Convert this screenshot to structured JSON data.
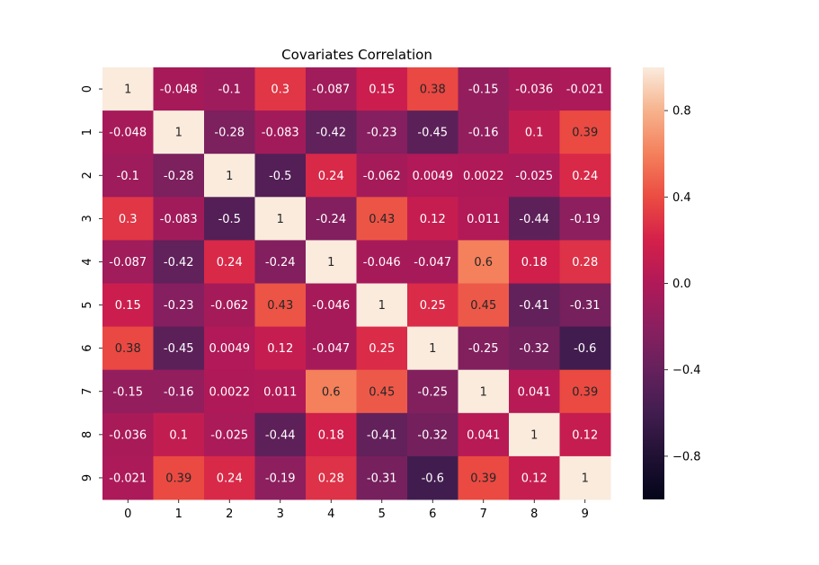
{
  "chart_data": {
    "type": "heatmap",
    "title": "Covariates Correlation",
    "xlabel": "",
    "ylabel": "",
    "x_ticks": [
      "0",
      "1",
      "2",
      "3",
      "4",
      "5",
      "6",
      "7",
      "8",
      "9"
    ],
    "y_ticks": [
      "0",
      "1",
      "2",
      "3",
      "4",
      "5",
      "6",
      "7",
      "8",
      "9"
    ],
    "values": [
      [
        1,
        -0.048,
        -0.1,
        0.3,
        -0.087,
        0.15,
        0.38,
        -0.15,
        -0.036,
        -0.021
      ],
      [
        -0.048,
        1,
        -0.28,
        -0.083,
        -0.42,
        -0.23,
        -0.45,
        -0.16,
        0.1,
        0.39
      ],
      [
        -0.1,
        -0.28,
        1,
        -0.5,
        0.24,
        -0.062,
        0.0049,
        0.0022,
        -0.025,
        0.24
      ],
      [
        0.3,
        -0.083,
        -0.5,
        1,
        -0.24,
        0.43,
        0.12,
        0.011,
        -0.44,
        -0.19
      ],
      [
        -0.087,
        -0.42,
        0.24,
        -0.24,
        1,
        -0.046,
        -0.047,
        0.6,
        0.18,
        0.28
      ],
      [
        0.15,
        -0.23,
        -0.062,
        0.43,
        -0.046,
        1,
        0.25,
        0.45,
        -0.41,
        -0.31
      ],
      [
        0.38,
        -0.45,
        0.0049,
        0.12,
        -0.047,
        0.25,
        1,
        -0.25,
        -0.32,
        -0.6
      ],
      [
        -0.15,
        -0.16,
        0.0022,
        0.011,
        0.6,
        0.45,
        -0.25,
        1,
        0.041,
        0.39
      ],
      [
        -0.036,
        0.1,
        -0.025,
        -0.44,
        0.18,
        -0.41,
        -0.32,
        0.041,
        1,
        0.12
      ],
      [
        -0.021,
        0.39,
        0.24,
        -0.19,
        0.28,
        -0.31,
        -0.6,
        0.39,
        0.12,
        1
      ]
    ],
    "vmin": -1,
    "vmax": 1,
    "colormap": "rocket",
    "colorbar": {
      "ticks": [
        0.8,
        0.4,
        0.0,
        -0.4,
        -0.8
      ],
      "tick_labels": [
        "0.8",
        "0.4",
        "0.0",
        "−0.4",
        "−0.8"
      ]
    },
    "annotations": true,
    "grid": false
  }
}
